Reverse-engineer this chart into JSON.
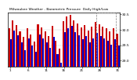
{
  "title": "Milwaukee Weather - Barometric Pressure",
  "subtitle": "Daily High/Low",
  "high_color": "#cc0000",
  "low_color": "#0000cc",
  "background_color": "#ffffff",
  "plot_bg": "#ffffff",
  "ylim": [
    28.8,
    30.55
  ],
  "yticks": [
    29.0,
    29.5,
    30.0,
    30.5
  ],
  "ytick_labels": [
    "29.0",
    "29.5",
    "30.0",
    "30.5"
  ],
  "bar_width": 0.45,
  "n_days": 31,
  "highs": [
    30.05,
    30.3,
    30.15,
    29.95,
    29.78,
    30.05,
    29.85,
    29.62,
    30.18,
    30.08,
    29.95,
    29.8,
    30.12,
    29.65,
    29.4,
    30.28,
    30.42,
    30.48,
    30.3,
    30.2,
    30.08,
    30.15,
    29.98,
    30.1,
    30.25,
    30.18,
    30.1,
    30.05,
    29.95,
    30.05,
    29.88
  ],
  "lows": [
    29.7,
    29.98,
    29.82,
    29.58,
    29.35,
    29.72,
    29.5,
    29.28,
    29.85,
    29.72,
    29.58,
    29.42,
    29.78,
    29.22,
    28.92,
    29.92,
    30.05,
    30.12,
    29.92,
    29.82,
    29.68,
    29.8,
    29.6,
    29.72,
    29.9,
    29.8,
    29.72,
    29.65,
    29.52,
    29.68,
    29.48
  ]
}
